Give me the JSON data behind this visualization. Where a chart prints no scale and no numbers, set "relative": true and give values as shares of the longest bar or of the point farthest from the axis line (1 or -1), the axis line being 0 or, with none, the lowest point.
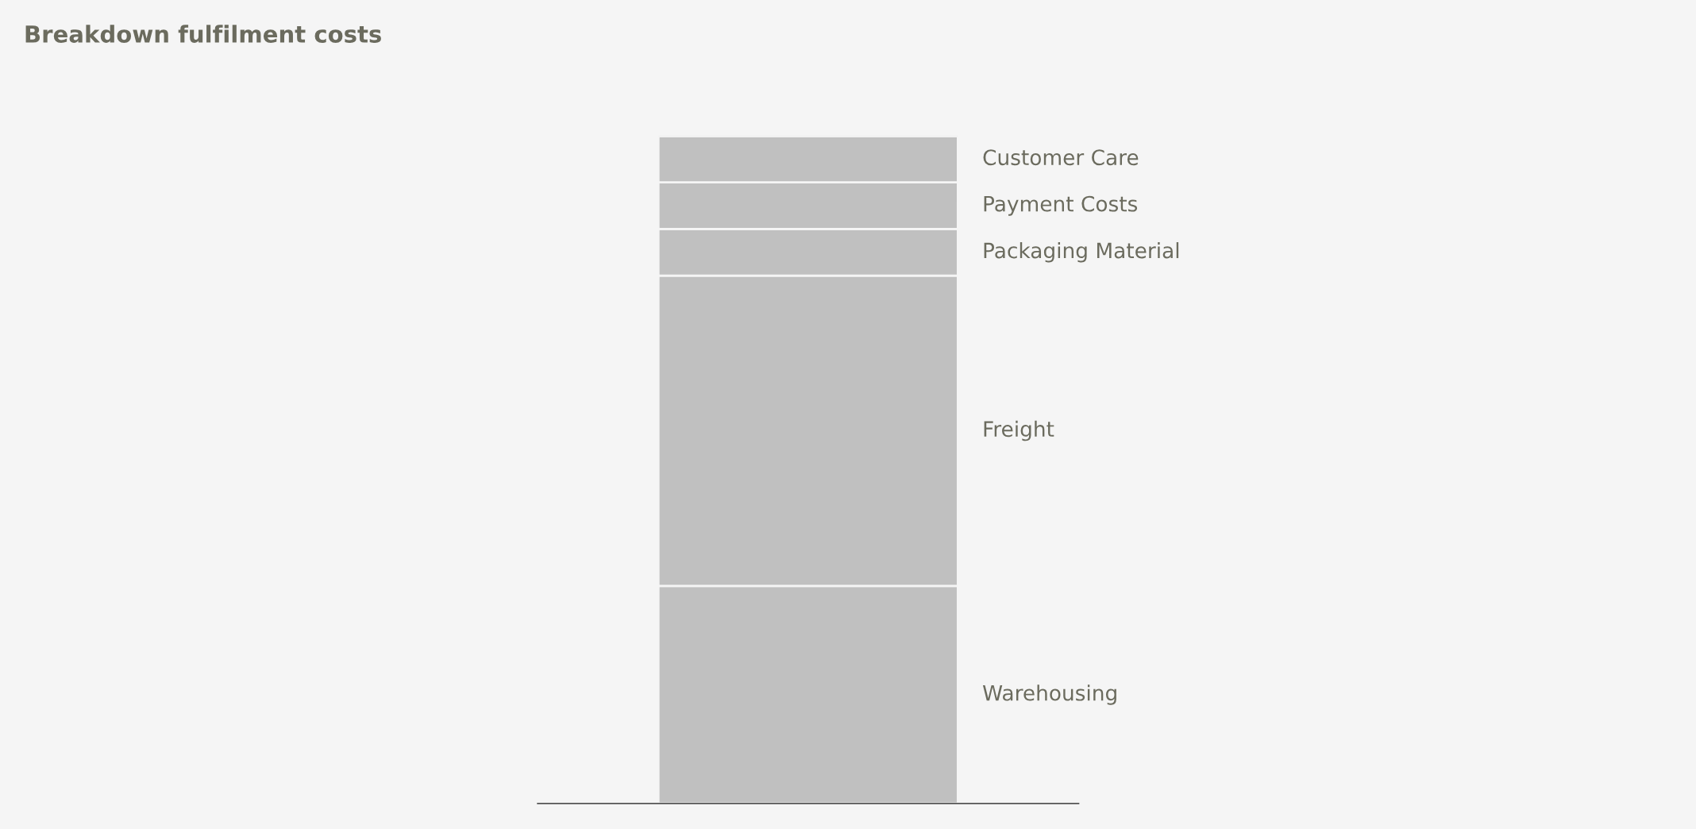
{
  "chart_data": {
    "type": "bar",
    "title": "Breakdown fulfilment costs",
    "categories": [
      null
    ],
    "stacked": true,
    "relative": true,
    "legend": false,
    "series": [
      {
        "name": "Warehousing",
        "color": "#c0c0c0",
        "values": [
          0.326
        ]
      },
      {
        "name": "Freight",
        "color": "#c0c0c0",
        "values": [
          0.465
        ]
      },
      {
        "name": "Packaging Material",
        "color": "#c0c0c0",
        "values": [
          0.07
        ]
      },
      {
        "name": "Payment Costs",
        "color": "#c0c0c0",
        "values": [
          0.07
        ]
      },
      {
        "name": "Customer Care",
        "color": "#c0c0c0",
        "values": [
          0.069
        ]
      }
    ]
  }
}
